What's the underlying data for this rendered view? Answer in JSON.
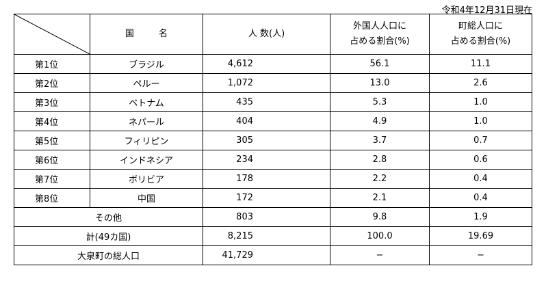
{
  "as_of": "令和4年12月31日現在",
  "headers": {
    "country": "国 名",
    "population": "人 数(人)",
    "foreign_ratio_line1": "外国人人口に",
    "foreign_ratio_line2": "占める割合(%)",
    "town_ratio_line1": "町総人口に",
    "town_ratio_line2": "占める割合(%)"
  },
  "rows": [
    {
      "rank": "第1位",
      "country": "ブラジル",
      "population": "4,612",
      "foreign_ratio": "56.1",
      "town_ratio": "11.1"
    },
    {
      "rank": "第2位",
      "country": "ペルー",
      "population": "1,072",
      "foreign_ratio": "13.0",
      "town_ratio": "2.6"
    },
    {
      "rank": "第3位",
      "country": "ベトナム",
      "population": "435",
      "foreign_ratio": "5.3",
      "town_ratio": "1.0"
    },
    {
      "rank": "第4位",
      "country": "ネパール",
      "population": "404",
      "foreign_ratio": "4.9",
      "town_ratio": "1.0"
    },
    {
      "rank": "第5位",
      "country": "フィリピン",
      "population": "305",
      "foreign_ratio": "3.7",
      "town_ratio": "0.7"
    },
    {
      "rank": "第6位",
      "country": "インドネシア",
      "population": "234",
      "foreign_ratio": "2.8",
      "town_ratio": "0.6"
    },
    {
      "rank": "第7位",
      "country": "ボリビア",
      "population": "178",
      "foreign_ratio": "2.2",
      "town_ratio": "0.4"
    },
    {
      "rank": "第8位",
      "country": "中国",
      "population": "172",
      "foreign_ratio": "2.1",
      "town_ratio": "0.4"
    }
  ],
  "other": {
    "label": "その他",
    "population": "803",
    "foreign_ratio": "9.8",
    "town_ratio": "1.9"
  },
  "total": {
    "label": "計(49カ国)",
    "population": "8,215",
    "foreign_ratio": "100.0",
    "town_ratio": "19.69"
  },
  "town_total": {
    "label": "大泉町の総人口",
    "population": "41,729",
    "foreign_ratio": "−",
    "town_ratio": "−"
  }
}
